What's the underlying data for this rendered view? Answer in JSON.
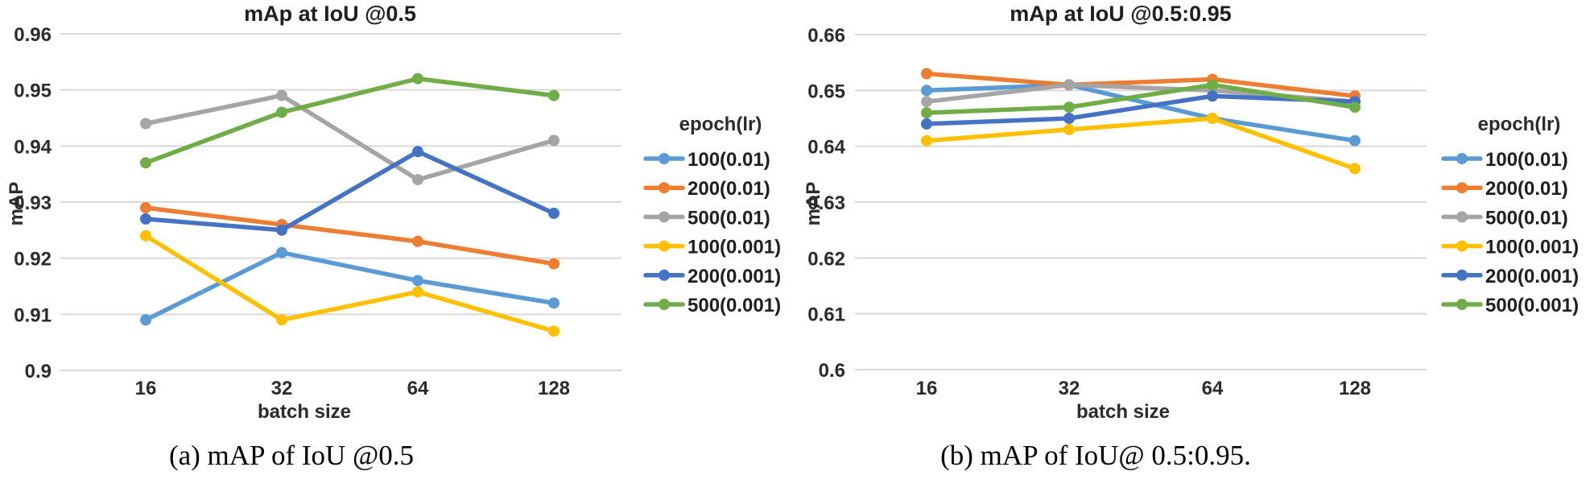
{
  "figure": {
    "background": "#ffffff",
    "gridline_color": "#D9D9D9",
    "text_color": "#2b2b2b"
  },
  "chart_data": [
    {
      "type": "line",
      "title": "mAp at IoU @0.5",
      "xlabel": "batch size",
      "ylabel": "mAP",
      "caption": "(a) mAP of IoU @0.5",
      "legend_title": "epoch(lr)",
      "legend_position": "right",
      "grid": true,
      "markers": true,
      "categories": [
        "16",
        "32",
        "64",
        "128"
      ],
      "ylim": [
        0.9,
        0.96
      ],
      "yticks": [
        "0.96",
        "0.95",
        "0.94",
        "0.93",
        "0.92",
        "0.91",
        "0.9"
      ],
      "series": [
        {
          "name": "100(0.01)",
          "color": "#5B9BD5",
          "values": [
            0.909,
            0.921,
            0.916,
            0.912
          ]
        },
        {
          "name": "200(0.01)",
          "color": "#ED7D31",
          "values": [
            0.929,
            0.926,
            0.923,
            0.919
          ]
        },
        {
          "name": "500(0.01)",
          "color": "#A5A5A5",
          "values": [
            0.944,
            0.949,
            0.934,
            0.941
          ]
        },
        {
          "name": "100(0.001)",
          "color": "#FFC000",
          "values": [
            0.924,
            0.909,
            0.914,
            0.907
          ]
        },
        {
          "name": "200(0.001)",
          "color": "#4472C4",
          "values": [
            0.927,
            0.925,
            0.939,
            0.928
          ]
        },
        {
          "name": "500(0.001)",
          "color": "#70AD47",
          "values": [
            0.937,
            0.946,
            0.952,
            0.949
          ]
        }
      ]
    },
    {
      "type": "line",
      "title": "mAp at IoU @0.5:0.95",
      "xlabel": "batch size",
      "ylabel": "mAP",
      "caption": "(b) mAP of IoU@ 0.5:0.95.",
      "legend_title": "epoch(lr)",
      "legend_position": "right",
      "grid": true,
      "markers": true,
      "categories": [
        "16",
        "32",
        "64",
        "128"
      ],
      "ylim": [
        0.6,
        0.66
      ],
      "yticks": [
        "0.66",
        "0.65",
        "0.64",
        "0.63",
        "0.62",
        "0.61",
        "0.6"
      ],
      "series": [
        {
          "name": "100(0.01)",
          "color": "#5B9BD5",
          "values": [
            0.65,
            0.651,
            0.645,
            0.641
          ]
        },
        {
          "name": "200(0.01)",
          "color": "#ED7D31",
          "values": [
            0.653,
            0.651,
            0.652,
            0.649
          ]
        },
        {
          "name": "500(0.01)",
          "color": "#A5A5A5",
          "values": [
            0.648,
            0.651,
            0.65,
            0.648
          ]
        },
        {
          "name": "100(0.001)",
          "color": "#FFC000",
          "values": [
            0.641,
            0.643,
            0.645,
            0.636
          ]
        },
        {
          "name": "200(0.001)",
          "color": "#4472C4",
          "values": [
            0.644,
            0.645,
            0.649,
            0.648
          ]
        },
        {
          "name": "500(0.001)",
          "color": "#70AD47",
          "values": [
            0.646,
            0.647,
            0.651,
            0.647
          ]
        }
      ]
    }
  ]
}
